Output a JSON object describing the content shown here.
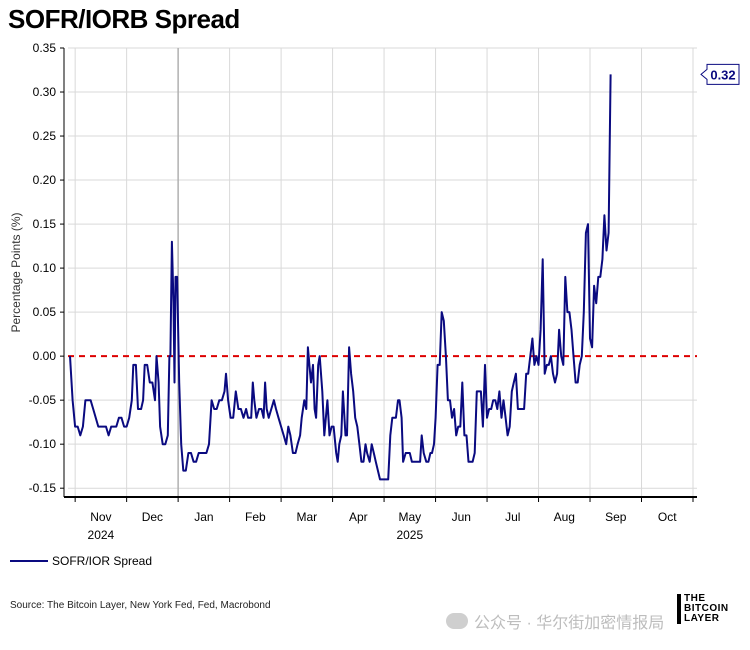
{
  "title": "SOFR/IORB Spread",
  "source": "Source: The Bitcoin Layer, New York Fed, Fed, Macrobond",
  "watermark": "公众号 · 华尔街加密情报局",
  "logo": {
    "line1": "THE",
    "line2": "BITCOIN",
    "line3": "LAYER"
  },
  "colors": {
    "series": "#0a0a80",
    "zero_line": "#dd0000",
    "grid": "#d9d9d9",
    "callout_border": "#0a0a80"
  },
  "chart_data": {
    "type": "line",
    "title": "SOFR/IORB Spread",
    "ylabel": "Percentage Points (%)",
    "ylim": [
      -0.16,
      0.35
    ],
    "yticks": [
      -0.15,
      -0.1,
      -0.05,
      0.0,
      0.05,
      0.1,
      0.15,
      0.2,
      0.25,
      0.3,
      0.35
    ],
    "ytick_labels": [
      "-0.15",
      "-0.10",
      "-0.05",
      "0.00",
      "0.05",
      "0.10",
      "0.15",
      "0.20",
      "0.25",
      "0.30",
      "0.35"
    ],
    "months": [
      {
        "label": "Nov",
        "year": "2024"
      },
      {
        "label": "Dec",
        "year": ""
      },
      {
        "label": "Jan",
        "year": ""
      },
      {
        "label": "Feb",
        "year": ""
      },
      {
        "label": "Mar",
        "year": ""
      },
      {
        "label": "Apr",
        "year": ""
      },
      {
        "label": "May",
        "year": "2025"
      },
      {
        "label": "Jun",
        "year": ""
      },
      {
        "label": "Jul",
        "year": ""
      },
      {
        "label": "Aug",
        "year": ""
      },
      {
        "label": "Sep",
        "year": ""
      },
      {
        "label": "Oct",
        "year": ""
      }
    ],
    "x_start_month_offset": -0.1,
    "x_end_month_offset": 12.0,
    "year_divider_month_offset": 2.0,
    "reference_line": {
      "value": 0.0,
      "style": "dashed"
    },
    "last_value_label": "0.32",
    "legend": "SOFR/IOR Spread",
    "legend_position": "bottom-left",
    "series": [
      {
        "name": "SOFR/IOR Spread",
        "points": [
          [
            -0.1,
            0.0
          ],
          [
            -0.05,
            -0.05
          ],
          [
            0.0,
            -0.08
          ],
          [
            0.05,
            -0.08
          ],
          [
            0.1,
            -0.09
          ],
          [
            0.15,
            -0.08
          ],
          [
            0.2,
            -0.05
          ],
          [
            0.3,
            -0.05
          ],
          [
            0.35,
            -0.06
          ],
          [
            0.45,
            -0.08
          ],
          [
            0.5,
            -0.08
          ],
          [
            0.6,
            -0.08
          ],
          [
            0.65,
            -0.09
          ],
          [
            0.7,
            -0.08
          ],
          [
            0.8,
            -0.08
          ],
          [
            0.85,
            -0.07
          ],
          [
            0.9,
            -0.07
          ],
          [
            0.95,
            -0.08
          ],
          [
            1.0,
            -0.08
          ],
          [
            1.05,
            -0.07
          ],
          [
            1.1,
            -0.05
          ],
          [
            1.13,
            -0.01
          ],
          [
            1.18,
            -0.01
          ],
          [
            1.22,
            -0.06
          ],
          [
            1.28,
            -0.06
          ],
          [
            1.32,
            -0.05
          ],
          [
            1.35,
            -0.01
          ],
          [
            1.4,
            -0.01
          ],
          [
            1.45,
            -0.03
          ],
          [
            1.5,
            -0.03
          ],
          [
            1.55,
            -0.05
          ],
          [
            1.58,
            0.0
          ],
          [
            1.62,
            -0.03
          ],
          [
            1.65,
            -0.08
          ],
          [
            1.7,
            -0.1
          ],
          [
            1.75,
            -0.1
          ],
          [
            1.8,
            -0.09
          ],
          [
            1.83,
            0.0
          ],
          [
            1.85,
            0.0
          ],
          [
            1.88,
            0.13
          ],
          [
            1.91,
            0.06
          ],
          [
            1.93,
            -0.03
          ],
          [
            1.95,
            0.09
          ],
          [
            1.98,
            0.09
          ],
          [
            2.02,
            -0.03
          ],
          [
            2.06,
            -0.1
          ],
          [
            2.1,
            -0.13
          ],
          [
            2.15,
            -0.13
          ],
          [
            2.2,
            -0.11
          ],
          [
            2.25,
            -0.11
          ],
          [
            2.3,
            -0.12
          ],
          [
            2.35,
            -0.12
          ],
          [
            2.4,
            -0.11
          ],
          [
            2.45,
            -0.11
          ],
          [
            2.5,
            -0.11
          ],
          [
            2.55,
            -0.11
          ],
          [
            2.6,
            -0.1
          ],
          [
            2.65,
            -0.05
          ],
          [
            2.7,
            -0.06
          ],
          [
            2.75,
            -0.06
          ],
          [
            2.8,
            -0.05
          ],
          [
            2.85,
            -0.05
          ],
          [
            2.9,
            -0.04
          ],
          [
            2.93,
            -0.02
          ],
          [
            2.97,
            -0.05
          ],
          [
            3.02,
            -0.07
          ],
          [
            3.07,
            -0.07
          ],
          [
            3.12,
            -0.04
          ],
          [
            3.17,
            -0.06
          ],
          [
            3.22,
            -0.06
          ],
          [
            3.27,
            -0.07
          ],
          [
            3.32,
            -0.06
          ],
          [
            3.36,
            -0.07
          ],
          [
            3.42,
            -0.07
          ],
          [
            3.45,
            -0.03
          ],
          [
            3.48,
            -0.05
          ],
          [
            3.52,
            -0.07
          ],
          [
            3.57,
            -0.06
          ],
          [
            3.62,
            -0.06
          ],
          [
            3.66,
            -0.07
          ],
          [
            3.69,
            -0.03
          ],
          [
            3.72,
            -0.06
          ],
          [
            3.76,
            -0.07
          ],
          [
            3.81,
            -0.06
          ],
          [
            3.86,
            -0.05
          ],
          [
            3.9,
            -0.06
          ],
          [
            3.95,
            -0.07
          ],
          [
            4.0,
            -0.08
          ],
          [
            4.05,
            -0.09
          ],
          [
            4.1,
            -0.1
          ],
          [
            4.14,
            -0.08
          ],
          [
            4.18,
            -0.09
          ],
          [
            4.23,
            -0.11
          ],
          [
            4.28,
            -0.11
          ],
          [
            4.32,
            -0.1
          ],
          [
            4.37,
            -0.09
          ],
          [
            4.4,
            -0.07
          ],
          [
            4.45,
            -0.05
          ],
          [
            4.49,
            -0.06
          ],
          [
            4.52,
            0.01
          ],
          [
            4.55,
            -0.01
          ],
          [
            4.58,
            -0.03
          ],
          [
            4.62,
            -0.01
          ],
          [
            4.65,
            -0.06
          ],
          [
            4.68,
            -0.07
          ],
          [
            4.72,
            -0.01
          ],
          [
            4.75,
            0.0
          ],
          [
            4.8,
            -0.04
          ],
          [
            4.84,
            -0.09
          ],
          [
            4.9,
            -0.05
          ],
          [
            4.94,
            -0.09
          ],
          [
            4.98,
            -0.08
          ],
          [
            5.02,
            -0.08
          ],
          [
            5.07,
            -0.11
          ],
          [
            5.1,
            -0.12
          ],
          [
            5.13,
            -0.1
          ],
          [
            5.17,
            -0.09
          ],
          [
            5.2,
            -0.04
          ],
          [
            5.25,
            -0.09
          ],
          [
            5.28,
            -0.09
          ],
          [
            5.32,
            0.01
          ],
          [
            5.36,
            -0.02
          ],
          [
            5.4,
            -0.04
          ],
          [
            5.44,
            -0.07
          ],
          [
            5.48,
            -0.08
          ],
          [
            5.52,
            -0.1
          ],
          [
            5.56,
            -0.12
          ],
          [
            5.6,
            -0.12
          ],
          [
            5.64,
            -0.1
          ],
          [
            5.67,
            -0.11
          ],
          [
            5.72,
            -0.12
          ],
          [
            5.76,
            -0.1
          ],
          [
            5.8,
            -0.11
          ],
          [
            5.84,
            -0.12
          ],
          [
            5.88,
            -0.13
          ],
          [
            5.92,
            -0.14
          ],
          [
            5.96,
            -0.14
          ],
          [
            6.0,
            -0.14
          ],
          [
            6.05,
            -0.14
          ],
          [
            6.08,
            -0.14
          ],
          [
            6.12,
            -0.09
          ],
          [
            6.16,
            -0.07
          ],
          [
            6.2,
            -0.07
          ],
          [
            6.23,
            -0.07
          ],
          [
            6.27,
            -0.05
          ],
          [
            6.3,
            -0.05
          ],
          [
            6.34,
            -0.07
          ],
          [
            6.37,
            -0.12
          ],
          [
            6.42,
            -0.11
          ],
          [
            6.46,
            -0.11
          ],
          [
            6.5,
            -0.11
          ],
          [
            6.54,
            -0.12
          ],
          [
            6.58,
            -0.12
          ],
          [
            6.62,
            -0.12
          ],
          [
            6.66,
            -0.12
          ],
          [
            6.7,
            -0.12
          ],
          [
            6.73,
            -0.09
          ],
          [
            6.77,
            -0.11
          ],
          [
            6.82,
            -0.12
          ],
          [
            6.86,
            -0.12
          ],
          [
            6.9,
            -0.11
          ],
          [
            6.93,
            -0.11
          ],
          [
            6.97,
            -0.1
          ],
          [
            7.0,
            -0.07
          ],
          [
            7.04,
            -0.01
          ],
          [
            7.08,
            -0.01
          ],
          [
            7.12,
            0.05
          ],
          [
            7.16,
            0.04
          ],
          [
            7.2,
            0.0
          ],
          [
            7.24,
            -0.05
          ],
          [
            7.28,
            -0.05
          ],
          [
            7.32,
            -0.07
          ],
          [
            7.36,
            -0.06
          ],
          [
            7.4,
            -0.09
          ],
          [
            7.44,
            -0.08
          ],
          [
            7.48,
            -0.08
          ],
          [
            7.52,
            -0.03
          ],
          [
            7.56,
            -0.09
          ],
          [
            7.6,
            -0.09
          ],
          [
            7.64,
            -0.12
          ],
          [
            7.68,
            -0.12
          ],
          [
            7.72,
            -0.12
          ],
          [
            7.76,
            -0.11
          ],
          [
            7.8,
            -0.04
          ],
          [
            7.84,
            -0.04
          ],
          [
            7.88,
            -0.04
          ],
          [
            7.92,
            -0.08
          ],
          [
            7.96,
            -0.01
          ],
          [
            8.0,
            -0.07
          ],
          [
            8.04,
            -0.06
          ],
          [
            8.08,
            -0.06
          ],
          [
            8.12,
            -0.05
          ],
          [
            8.16,
            -0.05
          ],
          [
            8.2,
            -0.06
          ],
          [
            8.24,
            -0.04
          ],
          [
            8.28,
            -0.07
          ],
          [
            8.32,
            -0.05
          ],
          [
            8.36,
            -0.07
          ],
          [
            8.4,
            -0.09
          ],
          [
            8.44,
            -0.08
          ],
          [
            8.48,
            -0.04
          ],
          [
            8.52,
            -0.03
          ],
          [
            8.56,
            -0.02
          ],
          [
            8.6,
            -0.06
          ],
          [
            8.64,
            -0.06
          ],
          [
            8.68,
            -0.06
          ],
          [
            8.72,
            -0.06
          ],
          [
            8.76,
            -0.02
          ],
          [
            8.8,
            -0.02
          ],
          [
            8.84,
            0.0
          ],
          [
            8.88,
            0.02
          ],
          [
            8.92,
            -0.01
          ],
          [
            8.96,
            0.0
          ],
          [
            9.0,
            -0.01
          ],
          [
            9.04,
            0.03
          ],
          [
            9.08,
            0.11
          ],
          [
            9.12,
            -0.02
          ],
          [
            9.16,
            -0.01
          ],
          [
            9.2,
            -0.01
          ],
          [
            9.24,
            0.0
          ],
          [
            9.28,
            -0.02
          ],
          [
            9.32,
            -0.03
          ],
          [
            9.36,
            -0.02
          ],
          [
            9.4,
            0.03
          ],
          [
            9.44,
            0.0
          ],
          [
            9.48,
            -0.01
          ],
          [
            9.52,
            0.09
          ],
          [
            9.56,
            0.05
          ],
          [
            9.6,
            0.05
          ],
          [
            9.64,
            0.03
          ],
          [
            9.68,
            0.0
          ],
          [
            9.72,
            -0.03
          ],
          [
            9.76,
            -0.03
          ],
          [
            9.8,
            -0.01
          ],
          [
            9.84,
            0.0
          ],
          [
            9.88,
            0.05
          ],
          [
            9.92,
            0.14
          ],
          [
            9.96,
            0.15
          ],
          [
            10.0,
            0.02
          ],
          [
            10.04,
            0.01
          ],
          [
            10.08,
            0.08
          ],
          [
            10.12,
            0.06
          ],
          [
            10.16,
            0.09
          ],
          [
            10.2,
            0.09
          ],
          [
            10.24,
            0.11
          ],
          [
            10.28,
            0.16
          ],
          [
            10.32,
            0.12
          ],
          [
            10.36,
            0.14
          ],
          [
            10.4,
            0.32
          ]
        ]
      }
    ]
  }
}
